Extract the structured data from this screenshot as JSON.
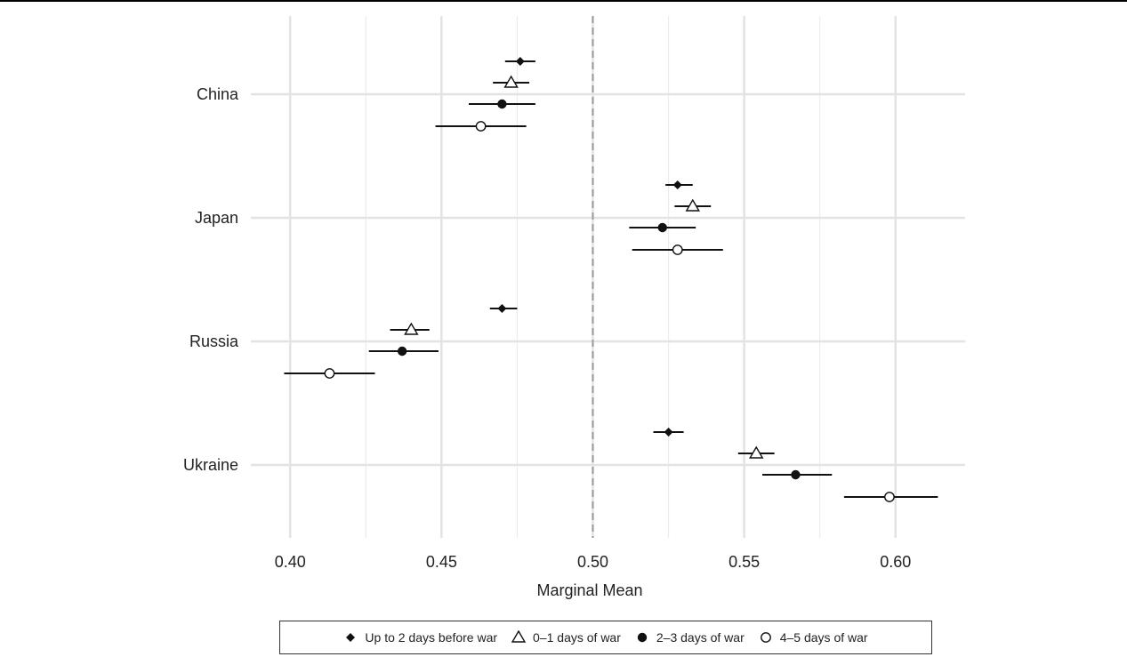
{
  "chart_data": {
    "type": "scatter",
    "title": "",
    "xlabel": "Marginal Mean",
    "ylabel": "",
    "xlim": [
      0.387,
      0.623
    ],
    "x_ticks": [
      "0.40",
      "0.45",
      "0.50",
      "0.55",
      "0.60"
    ],
    "x_tick_values": [
      0.4,
      0.45,
      0.5,
      0.55,
      0.6
    ],
    "reference_line": 0.5,
    "grid": true,
    "legend_position": "bottom",
    "categories": [
      "China",
      "Japan",
      "Russia",
      "Ukraine"
    ],
    "series": [
      {
        "name": "Up to 2 days before war",
        "marker": "diamond-filled",
        "estimates": [
          0.476,
          0.528,
          0.47,
          0.525
        ],
        "lower": [
          0.471,
          0.524,
          0.466,
          0.52
        ],
        "upper": [
          0.481,
          0.533,
          0.475,
          0.53
        ]
      },
      {
        "name": "0–1 days of war",
        "marker": "triangle-open",
        "estimates": [
          0.473,
          0.533,
          0.44,
          0.554
        ],
        "lower": [
          0.467,
          0.527,
          0.433,
          0.548
        ],
        "upper": [
          0.479,
          0.539,
          0.446,
          0.56
        ]
      },
      {
        "name": "2–3 days of war",
        "marker": "circle-filled",
        "estimates": [
          0.47,
          0.523,
          0.437,
          0.567
        ],
        "lower": [
          0.459,
          0.512,
          0.426,
          0.556
        ],
        "upper": [
          0.481,
          0.534,
          0.449,
          0.579
        ]
      },
      {
        "name": "4–5 days of war",
        "marker": "circle-open",
        "estimates": [
          0.463,
          0.528,
          0.413,
          0.598
        ],
        "lower": [
          0.448,
          0.513,
          0.398,
          0.583
        ],
        "upper": [
          0.478,
          0.543,
          0.428,
          0.614
        ]
      }
    ]
  }
}
